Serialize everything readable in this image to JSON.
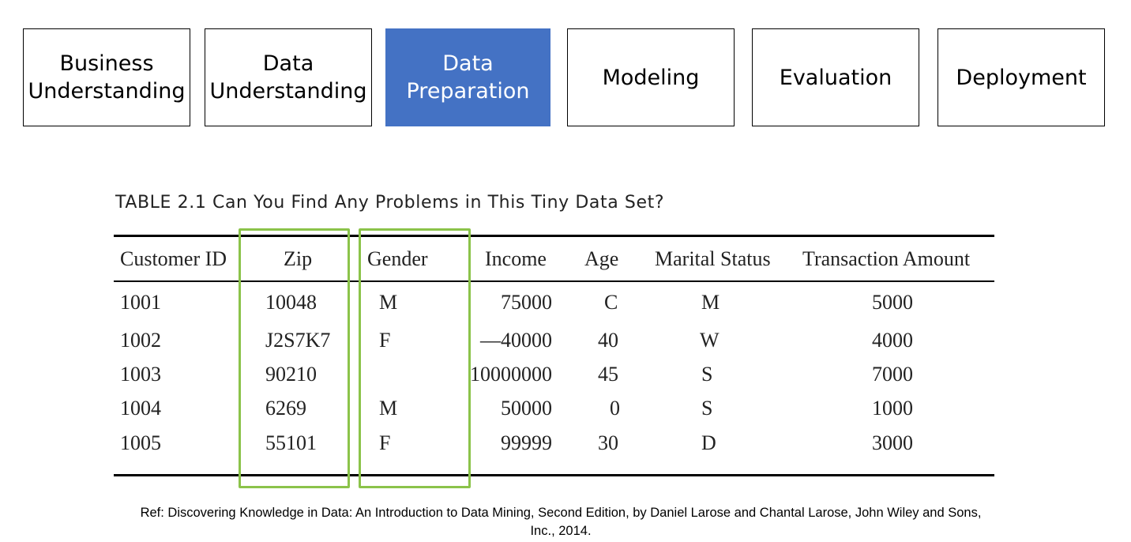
{
  "stages": [
    {
      "label": "Business\nUnderstanding",
      "active": false
    },
    {
      "label": "Data\nUnderstanding",
      "active": false
    },
    {
      "label": "Data\nPreparation",
      "active": true
    },
    {
      "label": "Modeling",
      "active": false
    },
    {
      "label": "Evaluation",
      "active": false
    },
    {
      "label": "Deployment",
      "active": false
    }
  ],
  "table": {
    "caption": "TABLE 2.1 Can You Find Any Problems in This Tiny Data Set?",
    "headers": [
      "Customer ID",
      "Zip",
      "Gender",
      "Income",
      "Age",
      "Marital Status",
      "Transaction Amount"
    ],
    "rows": [
      [
        "1001",
        "10048",
        "M",
        "75000",
        "C",
        "M",
        "5000"
      ],
      [
        "1002",
        "J2S7K7",
        "F",
        "—40000",
        "40",
        "W",
        "4000"
      ],
      [
        "1003",
        "90210",
        "",
        "10000000",
        "45",
        "S",
        "7000"
      ],
      [
        "1004",
        "6269",
        "M",
        "50000",
        "0",
        "S",
        "1000"
      ],
      [
        "1005",
        "55101",
        "F",
        "99999",
        "30",
        "D",
        "3000"
      ]
    ],
    "highlight_color": "#8bc34a",
    "highlighted_columns": [
      "Zip",
      "Gender"
    ]
  },
  "accent_color": "#4472c4",
  "reference": "Ref: Discovering Knowledge in Data: An Introduction to Data Mining, Second Edition, by Daniel Larose and Chantal Larose, John Wiley and Sons, Inc., 2014."
}
